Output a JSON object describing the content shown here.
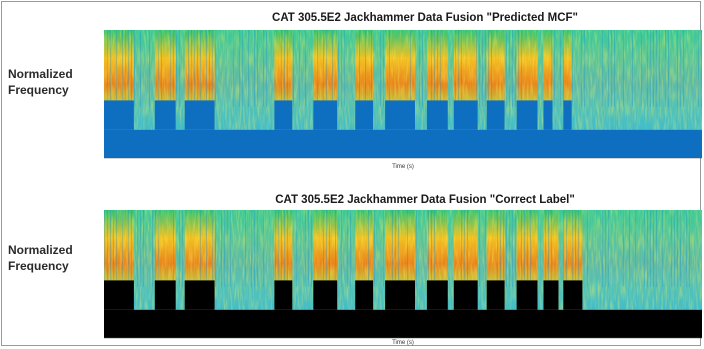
{
  "chart_data": [
    {
      "type": "heatmap",
      "title": "CAT 305.5E2 Jackhammer Data Fusion \"Predicted MCF\"",
      "ylabel": "Normalized Frequency",
      "xlabel": "Time (s)",
      "mask_color": "#0e6fc0",
      "segments": [
        [
          0.0,
          0.05
        ],
        [
          0.085,
          0.12
        ],
        [
          0.135,
          0.185
        ],
        [
          0.285,
          0.315
        ],
        [
          0.35,
          0.39
        ],
        [
          0.42,
          0.45
        ],
        [
          0.47,
          0.52
        ],
        [
          0.54,
          0.575
        ],
        [
          0.585,
          0.625
        ],
        [
          0.64,
          0.67
        ],
        [
          0.69,
          0.725
        ],
        [
          0.735,
          0.75
        ],
        [
          0.768,
          0.782
        ]
      ]
    },
    {
      "type": "heatmap",
      "title": "CAT 305.5E2 Jackhammer Data Fusion \"Correct Label\"",
      "ylabel": "Normalized Frequency",
      "xlabel": "Time (s)",
      "mask_color": "#000000",
      "segments": [
        [
          0.0,
          0.05
        ],
        [
          0.085,
          0.12
        ],
        [
          0.135,
          0.185
        ],
        [
          0.285,
          0.315
        ],
        [
          0.35,
          0.39
        ],
        [
          0.42,
          0.45
        ],
        [
          0.47,
          0.52
        ],
        [
          0.54,
          0.575
        ],
        [
          0.585,
          0.625
        ],
        [
          0.64,
          0.67
        ],
        [
          0.69,
          0.725
        ],
        [
          0.735,
          0.76
        ],
        [
          0.768,
          0.8
        ]
      ]
    }
  ]
}
